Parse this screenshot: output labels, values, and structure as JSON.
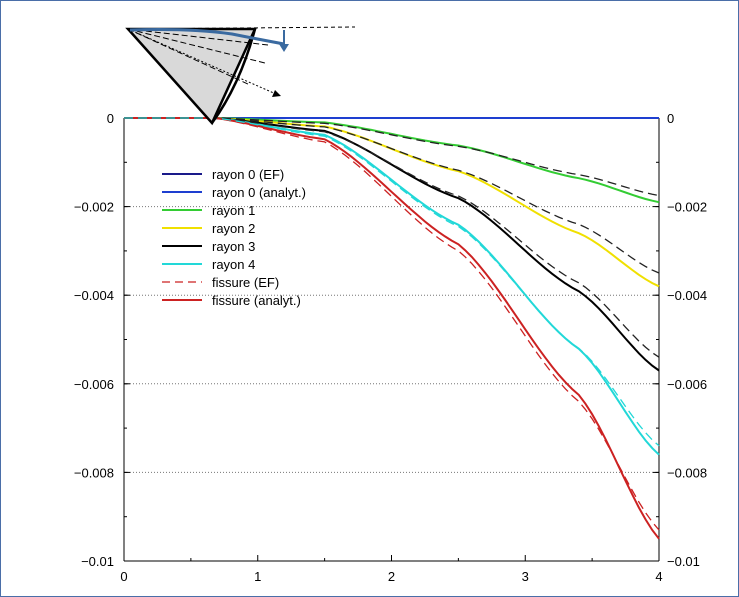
{
  "chart_data": {
    "type": "line",
    "title": "",
    "xlabel": "",
    "ylabel": "",
    "xlim": [
      0,
      4
    ],
    "ylim": [
      -0.01,
      0
    ],
    "xticks": [
      0,
      1,
      2,
      3,
      4
    ],
    "xtick_labels": [
      "0",
      "1",
      "2",
      "3",
      "4"
    ],
    "yticks": [
      0,
      -0.002,
      -0.004,
      -0.006,
      -0.008,
      -0.01
    ],
    "ytick_labels": [
      "0",
      "−0.002",
      "−0.004",
      "−0.006",
      "−0.008",
      "−0.01"
    ],
    "right_ytick_labels": [
      "0",
      "−0.002",
      "−0.004",
      "−0.006",
      "−0.008",
      "−0.01"
    ],
    "grid": "horizontal dotted",
    "legend_position": "upper-left",
    "series": [
      {
        "name": "rayon 0 (EF)",
        "color": "#1a1a8a",
        "dash": "solid",
        "x": [
          0,
          4
        ],
        "y": [
          0,
          0
        ]
      },
      {
        "name": "rayon 0 (analyt.)",
        "color": "#1e3fd0",
        "dash": "solid",
        "x": [
          0,
          4
        ],
        "y": [
          0,
          0
        ]
      },
      {
        "name": "rayon 1",
        "color": "#33cc33",
        "dash": "solid",
        "x": [
          0,
          0.68,
          1.5,
          2.5,
          3.4,
          4.0
        ],
        "y": [
          0,
          0,
          -0.0001,
          -0.00062,
          -0.00136,
          -0.0019
        ]
      },
      {
        "name": "rayon 2",
        "color": "#f0e000",
        "dash": "solid",
        "x": [
          0,
          0.68,
          1.5,
          2.5,
          3.4,
          4.0
        ],
        "y": [
          0,
          0,
          -0.00019,
          -0.0012,
          -0.0026,
          -0.0038
        ]
      },
      {
        "name": "rayon 3",
        "color": "#000000",
        "dash": "solid",
        "x": [
          0,
          0.68,
          1.5,
          2.5,
          3.4,
          4.0
        ],
        "y": [
          0,
          0,
          -0.00029,
          -0.00181,
          -0.00391,
          -0.0057
        ]
      },
      {
        "name": "rayon 4",
        "color": "#22d8d8",
        "dash": "solid",
        "x": [
          0,
          0.68,
          1.5,
          2.5,
          3.4,
          4.0
        ],
        "y": [
          0,
          0,
          -0.00038,
          -0.00241,
          -0.00521,
          -0.0076
        ]
      },
      {
        "name": "fissure (EF)",
        "color": "#cc2222",
        "dash": "dashed",
        "x": [
          0,
          0.68,
          1.5,
          2.5,
          3.4,
          4.0
        ],
        "y": [
          0,
          0,
          -0.00054,
          -0.003,
          -0.0064,
          -0.0093
        ]
      },
      {
        "name": "fissure (analyt.)",
        "color": "#cc2222",
        "dash": "solid",
        "x": [
          0,
          0.68,
          1.5,
          2.5,
          3.4,
          4.0
        ],
        "y": [
          0,
          0,
          -0.00048,
          -0.00285,
          -0.00625,
          -0.0095
        ]
      },
      {
        "name": "",
        "color": "#222222",
        "dash": "dashed",
        "x": [
          0,
          0.68,
          1.5,
          2.5,
          3.4,
          4.0
        ],
        "y": [
          0,
          0,
          -0.00012,
          -0.00064,
          -0.00128,
          -0.00175
        ]
      },
      {
        "name": "",
        "color": "#222222",
        "dash": "dashed",
        "x": [
          0,
          0.68,
          1.5,
          2.5,
          3.4,
          4.0
        ],
        "y": [
          0,
          0,
          -0.0002,
          -0.00118,
          -0.0024,
          -0.0035
        ]
      },
      {
        "name": "",
        "color": "#222222",
        "dash": "dashed",
        "x": [
          0,
          0.68,
          1.5,
          2.5,
          3.4,
          4.0
        ],
        "y": [
          0,
          0,
          -0.00031,
          -0.00176,
          -0.00372,
          -0.0054
        ]
      },
      {
        "name": "",
        "color": "#22d8d8",
        "dash": "dashed",
        "x": [
          0,
          0.68,
          1.5,
          2.5,
          3.4,
          4.0
        ],
        "y": [
          0,
          0,
          -0.00041,
          -0.00245,
          -0.0052,
          -0.0074
        ]
      }
    ],
    "legend": [
      {
        "label": "rayon 0 (EF)",
        "color": "#1a1a8a",
        "dash": "solid"
      },
      {
        "label": "rayon 0 (analyt.)",
        "color": "#1e3fd0",
        "dash": "solid"
      },
      {
        "label": "rayon 1",
        "color": "#33cc33",
        "dash": "solid"
      },
      {
        "label": "rayon 2",
        "color": "#f0e000",
        "dash": "solid"
      },
      {
        "label": "rayon 3",
        "color": "#000000",
        "dash": "solid"
      },
      {
        "label": "rayon 4",
        "color": "#22d8d8",
        "dash": "solid"
      },
      {
        "label": "fissure (EF)",
        "color": "#cc2222",
        "dash": "dashed"
      },
      {
        "label": "fissure (analyt.)",
        "color": "#cc2222",
        "dash": "solid"
      }
    ]
  },
  "colors": {
    "frame_border": "#4a6ea8",
    "inset_fill": "#d9d9d9",
    "inset_arc": "#3a6aa0"
  }
}
